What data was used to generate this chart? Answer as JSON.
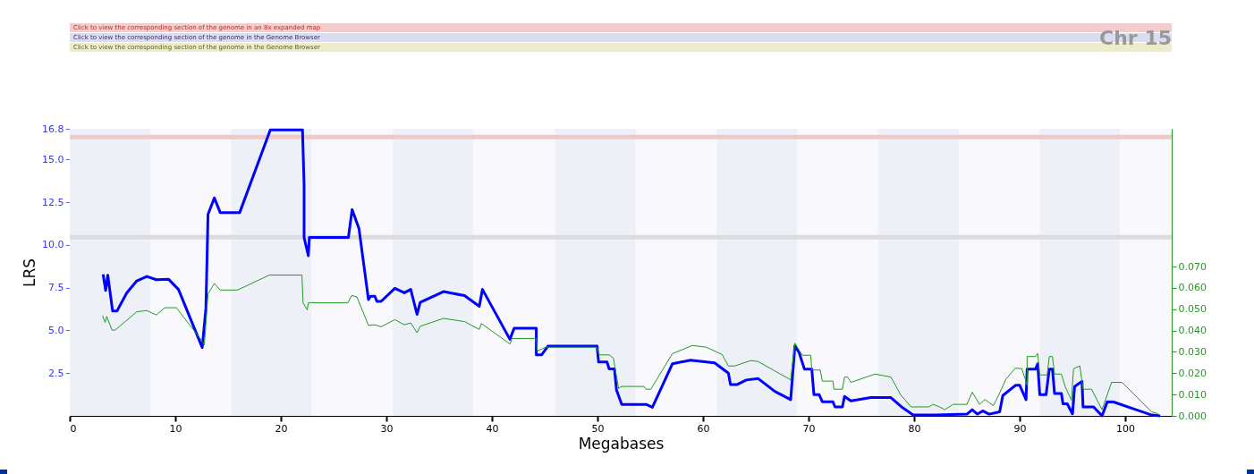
{
  "chart_data": {
    "type": "line",
    "xlabel": "Megabases",
    "ylabel": "LRS",
    "annotations": [
      "Click to view the corresponding section of the genome in an 8x expanded map",
      "Click to view the corresponding section of the genome in the Genome Browser",
      "Click to view the corresponding section of the genome in the Genome Browser",
      "Chr 15"
    ],
    "xlim": [
      0,
      104.4
    ],
    "xticks": [
      0,
      10,
      20,
      30,
      40,
      50,
      60,
      70,
      80,
      90,
      100
    ],
    "ylim": [
      0,
      16.8
    ],
    "yticks": [
      2.5,
      {
        "value": 5,
        "label": "5.0"
      },
      7.5,
      {
        "value": 10,
        "label": "10.0"
      },
      12.5,
      {
        "value": 15,
        "label": "15.0"
      },
      16.8
    ],
    "y2lim": [
      0,
      0.1346
    ],
    "y2ticks": [
      {
        "value": 0,
        "label": "0.000"
      },
      {
        "value": 0.01,
        "label": "0.010"
      },
      {
        "value": 0.02,
        "label": "0.020"
      },
      {
        "value": 0.03,
        "label": "0.030"
      },
      {
        "value": 0.04,
        "label": "0.040"
      },
      {
        "value": 0.05,
        "label": "0.050"
      },
      {
        "value": 0.06,
        "label": "0.060"
      },
      {
        "value": 0.07,
        "label": "0.070"
      }
    ],
    "grid": false,
    "marker": "none",
    "line_style": "solid",
    "ref_lines": [
      {
        "axis": "y",
        "value": 16.32,
        "label": null,
        "color": "#f0c8c8"
      },
      {
        "axis": "y",
        "value": 10.46,
        "label": null,
        "color": "#dcdcdc"
      }
    ],
    "bands": [
      {
        "axis": "x",
        "from": 0,
        "to": 7.6,
        "label": null,
        "color": "#eef0f8"
      },
      {
        "axis": "x",
        "from": 15.3,
        "to": 22.9,
        "label": null,
        "color": "#eef0f8"
      },
      {
        "axis": "x",
        "from": 30.6,
        "to": 38.2,
        "label": null,
        "color": "#eef0f8"
      },
      {
        "axis": "x",
        "from": 46.0,
        "to": 53.6,
        "label": null,
        "color": "#eef0f8"
      },
      {
        "axis": "x",
        "from": 61.3,
        "to": 68.9,
        "label": null,
        "color": "#eef0f8"
      },
      {
        "axis": "x",
        "from": 76.6,
        "to": 84.2,
        "label": null,
        "color": "#eef0f8"
      },
      {
        "axis": "x",
        "from": 91.9,
        "to": 99.5,
        "label": null,
        "color": "#eef0f8"
      }
    ],
    "series": [
      {
        "color": "#0000ff",
        "x": [
          3.16,
          3.4,
          3.6,
          3.83,
          4.06,
          4.47,
          5.4,
          6.35,
          7.3,
          8.2,
          9.35,
          10.3,
          12.55,
          12.9,
          13.1,
          13.7,
          14.25,
          16.1,
          19.0,
          22.05,
          22.2,
          22.2,
          22.6,
          22.7,
          26.4,
          26.75,
          27.4,
          28.3,
          28.5,
          28.9,
          29.1,
          29.5,
          30.8,
          31.7,
          32.3,
          32.9,
          33.2,
          35.4,
          37.4,
          38.8,
          39.1,
          41.7,
          42.1,
          44.2,
          44.2,
          44.7,
          45.3,
          49.96,
          50.1,
          50.9,
          51.1,
          51.6,
          51.8,
          52.3,
          54.6,
          55.2,
          57.1,
          58.8,
          61.1,
          62.4,
          62.6,
          63.2,
          64.1,
          65.2,
          66.8,
          68.3,
          68.7,
          69.1,
          69.6,
          70.3,
          70.5,
          71.0,
          71.3,
          72.3,
          72.5,
          73.2,
          73.4,
          74.0,
          75.9,
          77.8,
          78.9,
          79.9,
          82.0,
          85.0,
          85.5,
          86.0,
          86.5,
          87.1,
          88.1,
          88.4,
          89.6,
          90.0,
          90.6,
          90.7,
          91.5,
          91.7,
          91.9,
          92.5,
          92.8,
          93.1,
          93.3,
          93.95,
          94.1,
          94.5,
          95.0,
          95.2,
          95.9,
          96.0,
          97.0,
          97.8,
          98.3,
          98.9,
          102.5,
          103.3
        ],
        "values": [
          8.28,
          7.34,
          8.23,
          7.2,
          6.13,
          6.13,
          7.2,
          7.9,
          8.16,
          7.97,
          8.0,
          7.4,
          4.0,
          6.3,
          11.8,
          12.75,
          11.9,
          11.9,
          16.74,
          16.74,
          13.5,
          10.44,
          9.37,
          10.44,
          10.44,
          12.07,
          10.96,
          6.8,
          7.0,
          7.0,
          6.7,
          6.7,
          7.46,
          7.2,
          7.4,
          5.94,
          6.64,
          7.27,
          7.04,
          6.41,
          7.4,
          4.48,
          5.13,
          5.13,
          3.57,
          3.57,
          4.08,
          4.08,
          3.15,
          3.15,
          2.75,
          2.75,
          1.5,
          0.67,
          0.67,
          0.5,
          3.05,
          3.26,
          3.1,
          2.5,
          1.83,
          1.83,
          2.1,
          2.19,
          1.43,
          0.95,
          4.1,
          3.7,
          2.74,
          2.74,
          1.24,
          1.24,
          0.83,
          0.83,
          0.52,
          0.52,
          1.14,
          0.88,
          1.07,
          1.07,
          0.48,
          0.05,
          0.05,
          0.1,
          0.36,
          0.1,
          0.29,
          0.1,
          0.24,
          1.19,
          1.79,
          1.79,
          0.95,
          2.74,
          2.74,
          3.05,
          1.24,
          1.24,
          2.74,
          2.74,
          1.31,
          1.31,
          0.71,
          0.71,
          0.12,
          1.71,
          2.02,
          0.52,
          0.52,
          0,
          0.83,
          0.81,
          0.05,
          0
        ]
      },
      {
        "color": "#229922",
        "axis": "y2",
        "x": [
          3.1,
          3.35,
          3.5,
          4.0,
          4.3,
          6.35,
          7.3,
          8.2,
          9.0,
          10.1,
          12.55,
          12.75,
          13.1,
          13.7,
          14.25,
          15.9,
          18.9,
          22.0,
          22.1,
          22.5,
          22.6,
          26.35,
          26.7,
          27.2,
          28.3,
          28.9,
          29.5,
          30.8,
          31.7,
          32.3,
          32.9,
          33.2,
          35.4,
          37.4,
          38.8,
          39.0,
          41.7,
          41.9,
          44.2,
          44.3,
          45.1,
          49.96,
          50.15,
          51.1,
          51.5,
          52.0,
          52.3,
          54.4,
          54.6,
          55.05,
          57.1,
          59.0,
          60.3,
          61.8,
          62.4,
          63.0,
          64.5,
          65.2,
          68.3,
          68.7,
          69.4,
          70.2,
          70.3,
          71.1,
          71.3,
          72.3,
          72.4,
          73.2,
          73.4,
          73.7,
          74.0,
          76.3,
          77.8,
          78.7,
          79.7,
          81.4,
          81.8,
          82.4,
          82.9,
          83.7,
          85.0,
          85.5,
          86.2,
          86.7,
          87.5,
          88.0,
          88.7,
          89.6,
          90.2,
          90.7,
          90.7,
          91.5,
          91.7,
          91.9,
          92.6,
          92.8,
          93.1,
          93.3,
          93.95,
          94.3,
          94.9,
          95.1,
          95.7,
          96.0,
          96.8,
          97.8,
          98.7,
          99.7,
          102.5,
          103.1
        ],
        "values": [
          0.047,
          0.0438,
          0.0466,
          0.0402,
          0.0402,
          0.0488,
          0.0494,
          0.0473,
          0.0507,
          0.0507,
          0.035,
          0.0332,
          0.0571,
          0.0621,
          0.059,
          0.059,
          0.066,
          0.066,
          0.053,
          0.0497,
          0.053,
          0.053,
          0.0564,
          0.0558,
          0.0424,
          0.0427,
          0.0418,
          0.0451,
          0.0427,
          0.0436,
          0.039,
          0.042,
          0.0457,
          0.0442,
          0.0405,
          0.0433,
          0.0337,
          0.0363,
          0.0363,
          0.0304,
          0.0322,
          0.0322,
          0.0286,
          0.0286,
          0.0271,
          0.0129,
          0.0138,
          0.0138,
          0.0125,
          0.0125,
          0.0292,
          0.033,
          0.0322,
          0.0288,
          0.0234,
          0.0234,
          0.0259,
          0.0255,
          0.0169,
          0.0341,
          0.0284,
          0.0284,
          0.0215,
          0.0215,
          0.0163,
          0.0163,
          0.0125,
          0.0125,
          0.0182,
          0.0182,
          0.0157,
          0.0196,
          0.0182,
          0.01,
          0.0042,
          0.0042,
          0.0054,
          0.0042,
          0.0029,
          0.0054,
          0.0054,
          0.0111,
          0.0054,
          0.0077,
          0.0048,
          0.0096,
          0.0173,
          0.0224,
          0.0221,
          0.0144,
          0.0278,
          0.0278,
          0.0293,
          0.0192,
          0.0192,
          0.0278,
          0.0278,
          0.0196,
          0.0196,
          0.0138,
          0.0073,
          0.0221,
          0.0234,
          0.0125,
          0.0125,
          0.0029,
          0.0157,
          0.0157,
          0.0019,
          0.001
        ]
      }
    ]
  }
}
